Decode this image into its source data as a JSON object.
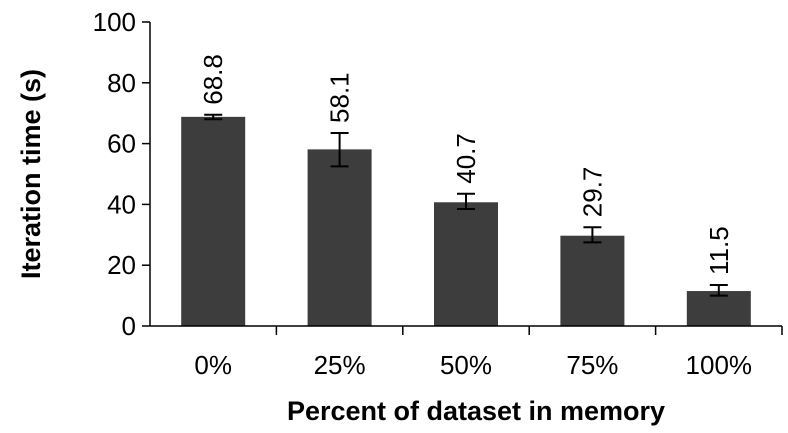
{
  "chart_data": {
    "type": "bar",
    "categories": [
      "0%",
      "25%",
      "50%",
      "75%",
      "100%"
    ],
    "values": [
      68.8,
      58.1,
      40.7,
      29.7,
      11.5
    ],
    "value_labels": [
      "68.8",
      "58.1",
      "40.7",
      "29.7",
      "11.5"
    ],
    "error_low": [
      68.0,
      52.5,
      38.5,
      27.5,
      10.0
    ],
    "error_high": [
      69.5,
      63.5,
      43.5,
      32.5,
      13.5
    ],
    "title": "",
    "xlabel": "Percent of dataset in memory",
    "ylabel": "Iteration time (s)",
    "ylim": [
      0,
      100
    ],
    "yticks": [
      0,
      20,
      40,
      60,
      80,
      100
    ],
    "ytick_labels": [
      "0",
      "20",
      "40",
      "60",
      "80",
      "100"
    ],
    "grid": false,
    "legend": "none",
    "bar_color": "#3d3d3d",
    "error_bar_color": "#000000"
  }
}
